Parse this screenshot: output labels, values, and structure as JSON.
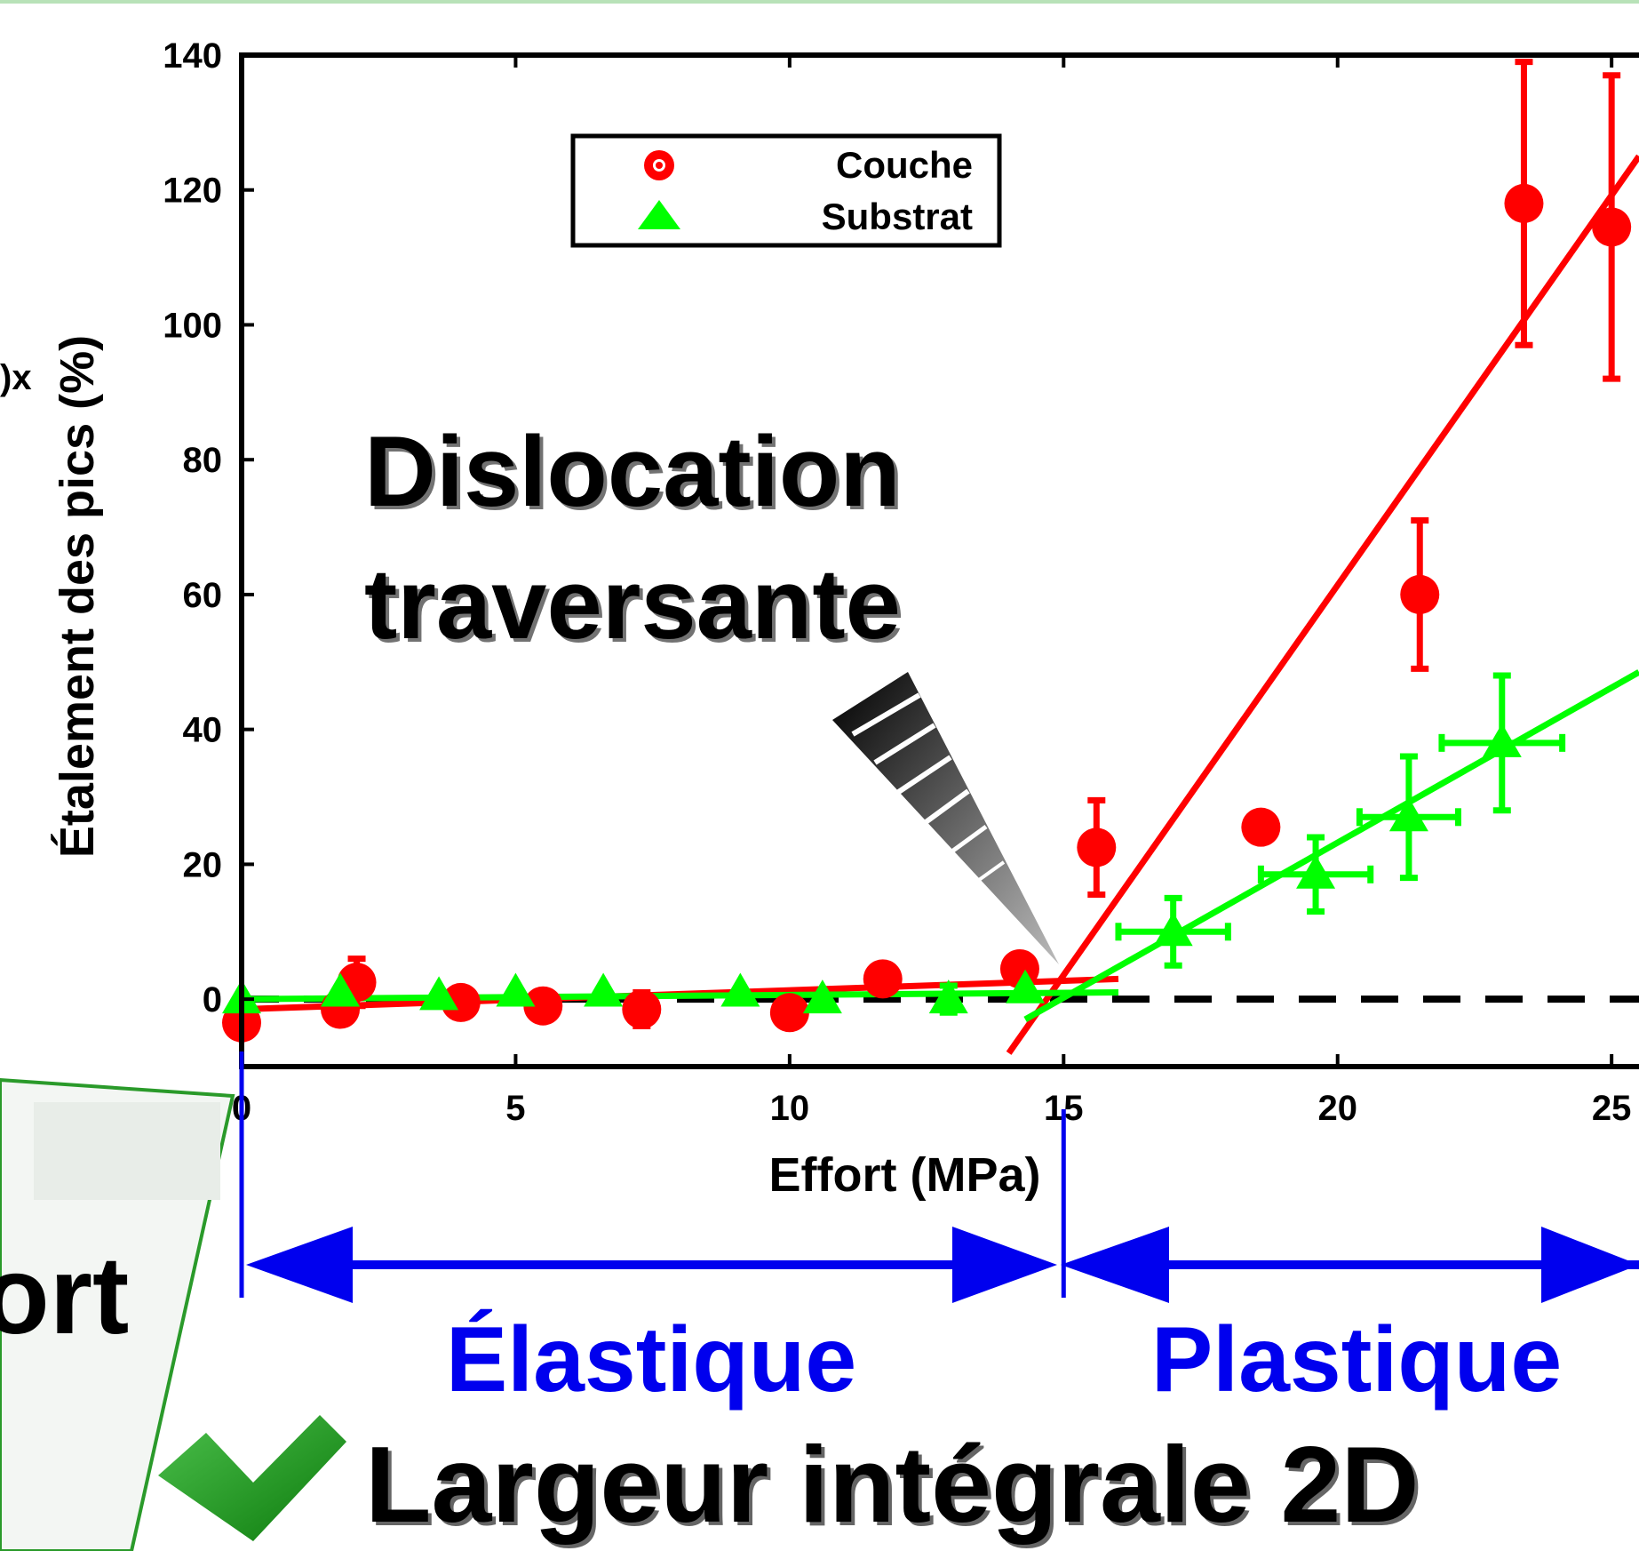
{
  "chart_data": {
    "type": "scatter",
    "title": "",
    "xlabel": "Effort (MPa)",
    "ylabel": "Étalement des pics (%)",
    "xlim": [
      0,
      25.5
    ],
    "ylim": [
      -10,
      140
    ],
    "xticks": [
      0,
      5,
      10,
      15,
      20,
      25
    ],
    "yticks": [
      0,
      20,
      40,
      60,
      80,
      100,
      120,
      140
    ],
    "grid": false,
    "legend_position": "top-center",
    "series": [
      {
        "name": "Couche",
        "color": "#ff0000",
        "marker": "circle",
        "x": [
          0,
          1.8,
          2.1,
          4,
          5.5,
          7.3,
          10,
          11.7,
          14.2,
          15.6,
          18.6,
          21.5,
          23.4,
          25
        ],
        "y": [
          -3.5,
          -1.5,
          2.5,
          -0.5,
          -1,
          -1.5,
          -2,
          3,
          4.5,
          22.5,
          25.5,
          60,
          118,
          114.5
        ],
        "yerr": [
          0,
          0,
          3.5,
          0,
          0,
          2.5,
          0,
          0,
          0,
          7,
          0,
          11,
          21,
          22.5
        ],
        "fit": {
          "x": [
            0,
            16
          ],
          "y": [
            -1.5,
            3
          ]
        },
        "fit2": {
          "x": [
            14,
            25.5
          ],
          "y": [
            -8,
            125
          ]
        }
      },
      {
        "name": "Substrat",
        "color": "#00ff00",
        "marker": "triangle",
        "x": [
          0,
          1.8,
          3.6,
          5,
          6.6,
          9.1,
          10.6,
          12.9,
          14.3,
          17,
          19.6,
          21.3,
          23
        ],
        "y": [
          0,
          1,
          0.5,
          1,
          1,
          1,
          0,
          0,
          1.5,
          10,
          18.5,
          27,
          38
        ],
        "xerr": [
          0,
          0,
          0,
          0,
          0,
          0,
          0,
          0,
          0,
          1,
          1,
          0.9,
          1.1
        ],
        "yerr": [
          0,
          0,
          0,
          0,
          0,
          0,
          0,
          2,
          0,
          5,
          5.5,
          9,
          10
        ],
        "fit": {
          "x": [
            0,
            16
          ],
          "y": [
            0,
            1
          ]
        },
        "fit2": {
          "x": [
            14.3,
            25.5
          ],
          "y": [
            -3,
            48.5
          ]
        }
      }
    ],
    "baseline_y": 0,
    "annotations": {
      "dislocation_line1": "Dislocation",
      "dislocation_line2": "traversante",
      "elastic": "Élastique",
      "plastic": "Plastique",
      "boundary_x": 15
    }
  },
  "footer": {
    "title": "Largeur intégrale 2D"
  },
  "left_panel": {
    "fragment_text": "ort",
    "ylabel_fragment": ")x"
  },
  "colors": {
    "couche": "#ff0000",
    "substrat": "#00ff00",
    "regime_arrow": "#0000ee",
    "check": "#1a9c1a",
    "panel_border": "#2a9a2a",
    "panel_fill": "#f3f6f3"
  }
}
